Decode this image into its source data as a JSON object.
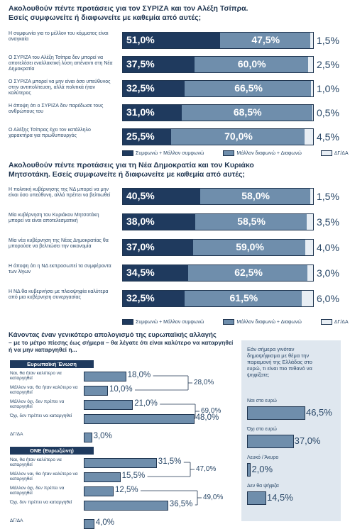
{
  "chart_data": [
    {
      "type": "bar",
      "title": "Ακολουθούν πέντε προτάσεις για τον ΣΥΡΙΖΑ και τον Αλέξη Τσίπρα.",
      "subtitle": "Εσείς συμφωνείτε ή διαφωνείτε με καθεμία από αυτές;",
      "categories": [
        "Η συμφωνία για το μέλλον του κόμματος είναι αναγκαία",
        "Ο ΣΥΡΙΖΑ του Αλέξη Τσίπρα δεν μπορεί να αποτελέσει εναλλακτική λύση απέναντι στη Νέα Δημοκρατία",
        "Ο ΣΥΡΙΖΑ μπορεί να μην είναι όσο υπεύθυνος στην αντιπολίτευση, αλλά πολιτικά ήταν καλύτερος",
        "Η άποψη ότι ο ΣΥΡΙΖΑ δεν παρέδωσε τους ανθρώπους του",
        "Ο Αλέξης Τσίπρας έχει τον κατάλληλο χαρακτήρα για πρωθυπουργός"
      ],
      "series": [
        {
          "name": "Συμφωνώ + Μάλλον συμφωνώ",
          "values": [
            51.0,
            37.5,
            32.5,
            31.0,
            25.5
          ]
        },
        {
          "name": "Μάλλον διαφωνώ + Διαφωνώ",
          "values": [
            47.5,
            60.0,
            66.5,
            68.5,
            70.0
          ]
        },
        {
          "name": "ΔΓ/ΔΑ",
          "values": [
            1.5,
            2.5,
            1.0,
            0.5,
            4.5
          ]
        }
      ],
      "labels": {
        "agree": [
          "51,0%",
          "37,5%",
          "32,5%",
          "31,0%",
          "25,5%"
        ],
        "disagree": [
          "47,5%",
          "60,0%",
          "66,5%",
          "68,5%",
          "70,0%"
        ],
        "na": [
          "1,5%",
          "2,5%",
          "1,0%",
          "0,5%",
          "4,5%"
        ]
      }
    },
    {
      "type": "bar",
      "title": "Ακολουθούν πέντε προτάσεις για τη Νέα Δημοκρατία και τον Κυριάκο",
      "subtitle": "Μητσοτάκη. Εσείς συμφωνείτε ή διαφωνείτε με καθεμία από αυτές;",
      "categories": [
        "Η πολιτική κυβέρνησης της ΝΔ μπορεί να μην είναι όσο υπεύθυνη, αλλά πρέπει να βελτιωθεί",
        "Μία κυβέρνηση του Κυριάκου Μητσοτάκη μπορεί να είναι αποτελεσματική",
        "Μία νέα κυβέρνηση της Νέας Δημοκρατίας θα μπορούσε να βελτιώσει την οικονομία",
        "Η άποψη ότι η ΝΔ εκπροσωπεί τα συμφέροντα των λίγων",
        "Η ΝΔ θα κυβερνήσει με πλειοψηφία καλύτερα από μια κυβέρνηση συνεργασίας"
      ],
      "series": [
        {
          "name": "Συμφωνώ + Μάλλον συμφωνώ",
          "values": [
            40.5,
            38.0,
            37.0,
            34.5,
            32.5
          ]
        },
        {
          "name": "Μάλλον διαφωνώ + Διαφωνώ",
          "values": [
            58.0,
            58.5,
            59.0,
            62.5,
            61.5
          ]
        },
        {
          "name": "ΔΓ/ΔΑ",
          "values": [
            1.5,
            3.5,
            4.0,
            3.0,
            6.0
          ]
        }
      ],
      "labels": {
        "agree": [
          "40,5%",
          "38,0%",
          "37,0%",
          "34,5%",
          "32,5%"
        ],
        "disagree": [
          "58,0%",
          "58,5%",
          "59,0%",
          "62,5%",
          "61,5%"
        ],
        "na": [
          "1,5%",
          "3,5%",
          "4,0%",
          "3,0%",
          "6,0%"
        ]
      }
    },
    {
      "type": "bar",
      "title": "Κάνοντας έναν γενικότερο απολογισμό της ευρωπαϊκής αλλαγής",
      "subtitle": "– με το μέτρο πίεσης έως σήμερα – θα λέγατε ότι είναι καλύτερο να καταργηθεί ή να μην καταργηθεί η...",
      "groups": [
        {
          "name": "Ευρωπαϊκή Ένωση",
          "categories": [
            "Ναι, θα ήταν καλύτερο να καταργηθεί",
            "Μάλλον ναι, θα ήταν καλύτερο να καταργηθεί",
            "Μάλλον όχι, δεν πρέπει να καταργηθεί",
            "Όχι, δεν πρέπει να καταργηθεί",
            "ΔΓ/ΔΑ"
          ],
          "values": [
            18.0,
            10.0,
            21.0,
            48.0,
            3.0
          ],
          "labels": [
            "18,0%",
            "10,0%",
            "21,0%",
            "48,0%",
            "3,0%"
          ],
          "totals": [
            "28,0%",
            "69,0%"
          ]
        },
        {
          "name": "ΟΝΕ (Ευρωζώνη)",
          "categories": [
            "Ναι, θα ήταν καλύτερο να καταργηθεί",
            "Μάλλον ναι, θα ήταν καλύτερο να καταργηθεί",
            "Μάλλον όχι, δεν πρέπει να καταργηθεί",
            "Όχι, δεν πρέπει να καταργηθεί",
            "ΔΓ/ΔΑ"
          ],
          "values": [
            31.5,
            15.5,
            12.5,
            36.5,
            4.0
          ],
          "labels": [
            "31,5%",
            "15,5%",
            "12,5%",
            "36,5%",
            "4,0%"
          ],
          "totals": [
            "47,0%",
            "49,0%"
          ]
        }
      ]
    },
    {
      "type": "bar",
      "title": "Εάν σήμερα γινόταν δημοψήφισμα με θέμα την παραμονή της Ελλάδας στο ευρώ, τι είναι πιο πιθανό να ψηφίζατε;",
      "categories": [
        "Ναι στο ευρώ",
        "Όχι στο ευρώ",
        "Λευκό / Άκυρο",
        "Δεν θα ψήφιζα"
      ],
      "values": [
        46.5,
        37.0,
        2.0,
        14.5
      ],
      "labels": [
        "46,5%",
        "37,0%",
        "2,0%",
        "14,5%"
      ]
    }
  ],
  "legend1": {
    "agree": "Συμφωνώ + Μάλλον συμφωνώ",
    "disagree": "Μάλλον διαφωνώ + Διαφωνώ",
    "na": "ΔΓ/ΔΑ"
  },
  "legend2": {
    "agree": "Συμφωνώ + Μάλλον συμφωνώ",
    "disagree": "Μάλλον διαφωνώ + Διαφωνώ",
    "na": "ΔΓ/ΔΑ"
  },
  "colors": {
    "agree": "#1f3a5e",
    "disagree": "#6f8eac",
    "na": "#e8eef4",
    "ink": "#1f3550"
  }
}
